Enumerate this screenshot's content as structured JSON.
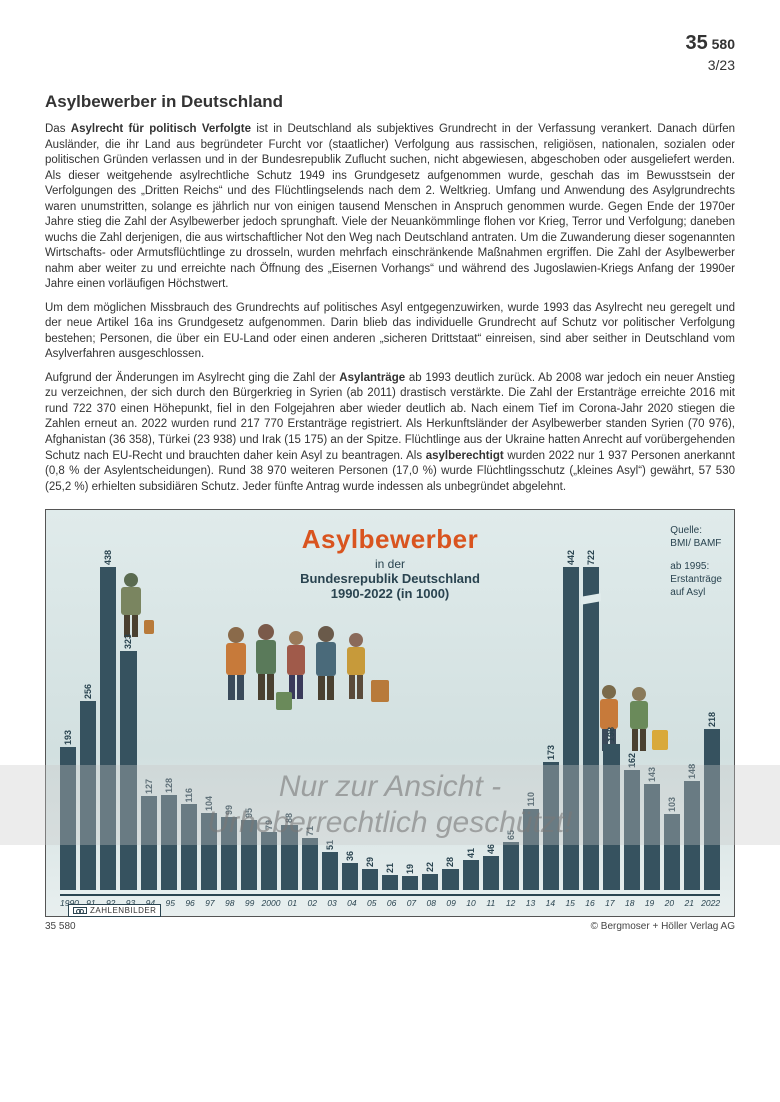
{
  "header": {
    "id_large": "35",
    "id_small": "580",
    "issue": "3/23"
  },
  "title": "Asylbewerber in Deutschland",
  "paragraphs": [
    "Das <b>Asylrecht für politisch Verfolgte</b> ist in Deutschland als subjektives Grundrecht in der Verfassung verankert. Danach dürfen Ausländer, die ihr Land aus begründeter Furcht vor (staatlicher) Verfolgung aus rassischen, religiösen, nationalen, sozialen oder politischen Gründen verlassen und in der Bundesrepublik Zuflucht suchen, nicht abgewiesen, abgeschoben oder ausgeliefert werden. Als dieser weitgehende asylrechtliche Schutz 1949 ins Grundgesetz aufgenommen wurde, geschah das im Bewusstsein der Verfolgungen des „Dritten Reichs“ und des Flüchtlingselends nach dem 2. Weltkrieg. Umfang und Anwendung des Asylgrundrechts waren unumstritten, solange es jährlich nur von einigen tausend Menschen in Anspruch genommen wurde. Gegen Ende der 1970er Jahre stieg die Zahl der Asylbewerber jedoch sprunghaft. Viele der Neuankömmlinge flohen vor Krieg, Terror und Verfolgung; daneben wuchs die Zahl derjenigen, die aus wirtschaftlicher Not den Weg nach Deutschland antraten. Um die Zuwanderung dieser sogenannten Wirtschafts- oder Armutsflüchtlinge zu drosseln, wurden mehrfach einschränkende Maßnahmen ergriffen. Die Zahl der Asylbewerber nahm aber weiter zu und erreichte nach Öffnung des „Eisernen Vorhangs“ und während des Jugoslawien-Kriegs Anfang der 1990er Jahre einen vorläufigen Höchstwert.",
    "Um dem möglichen Missbrauch des Grundrechts auf politisches Asyl entgegenzuwirken, wurde 1993 das Asylrecht neu geregelt und der neue Artikel 16a ins Grundgesetz aufgenommen. Darin blieb das individuelle Grundrecht auf Schutz vor politischer Verfolgung bestehen; Personen, die über ein EU-Land oder einen anderen „sicheren Drittstaat“ einreisen, sind aber seither in Deutschland vom Asylverfahren ausgeschlossen.",
    "Aufgrund der Änderungen im Asylrecht ging die Zahl der <b>Asylanträge</b> ab 1993 deutlich zurück. Ab 2008 war jedoch ein neuer Anstieg zu verzeichnen, der sich durch den Bürgerkrieg in Syrien (ab 2011) drastisch verstärkte. Die Zahl der Erstanträge erreichte 2016 mit rund 722 370 einen Höhepunkt, fiel in den Folgejahren aber wieder deutlich ab. Nach einem Tief im Corona-Jahr 2020 stiegen die Zahlen erneut an. 2022 wurden rund 217 770 Erstanträge registriert. Als Herkunftsländer der Asylbewerber standen Syrien (70 976), Afghanistan (36 358), Türkei (23 938) und Irak (15 175) an der Spitze. Flüchtlinge aus der Ukraine hatten Anrecht auf vorübergehenden Schutz nach EU-Recht und brauchten daher kein Asyl zu beantragen. Als <b>asylberechtigt</b> wurden 2022 nur 1 937 Personen anerkannt (0,8 % der Asylentscheidungen). Rund 38 970 weiteren Personen (17,0 %) wurde Flüchtlingsschutz („kleines Asyl“) gewährt, 57 530 (25,2 %) erhielten subsidiären Schutz. Jeder fünfte Antrag wurde indessen als unbegründet abgelehnt."
  ],
  "chart": {
    "type": "bar",
    "title_main": "Asylbewerber",
    "title_sub1": "in der",
    "title_sub2": "Bundesrepublik Deutschland",
    "title_sub3": "1990-2022 (in 1000)",
    "source_label": "Quelle:",
    "source_value": "BMI/ BAMF",
    "source_note": "ab 1995:\nErstanträge\nauf Asyl",
    "bar_color": "#36525f",
    "background_gradient": [
      "#e0ebeb",
      "#d2e0e0",
      "#e8efef"
    ],
    "title_color": "#d9541f",
    "subtitle_color": "#2a4450",
    "ymax_display": 460,
    "broken_year": "16",
    "years": [
      "1990",
      "91",
      "92",
      "93",
      "94",
      "95",
      "96",
      "97",
      "98",
      "99",
      "2000",
      "01",
      "02",
      "03",
      "04",
      "05",
      "06",
      "07",
      "08",
      "09",
      "10",
      "11",
      "12",
      "13",
      "14",
      "15",
      "16",
      "17",
      "18",
      "19",
      "20",
      "21",
      "2022"
    ],
    "values": [
      193,
      256,
      438,
      323,
      127,
      128,
      116,
      104,
      99,
      95,
      79,
      88,
      71,
      51,
      36,
      29,
      21,
      19,
      22,
      28,
      41,
      46,
      65,
      110,
      173,
      442,
      722,
      198,
      162,
      143,
      103,
      148,
      218
    ],
    "zahlenbilder_label": "ZAHLENBILDER"
  },
  "footer": {
    "left": "35 580",
    "right": "© Bergmoser + Höller Verlag AG"
  },
  "watermark": {
    "line1": "Nur zur Ansicht -",
    "line2": "Urheberrechtlich geschützt!"
  }
}
